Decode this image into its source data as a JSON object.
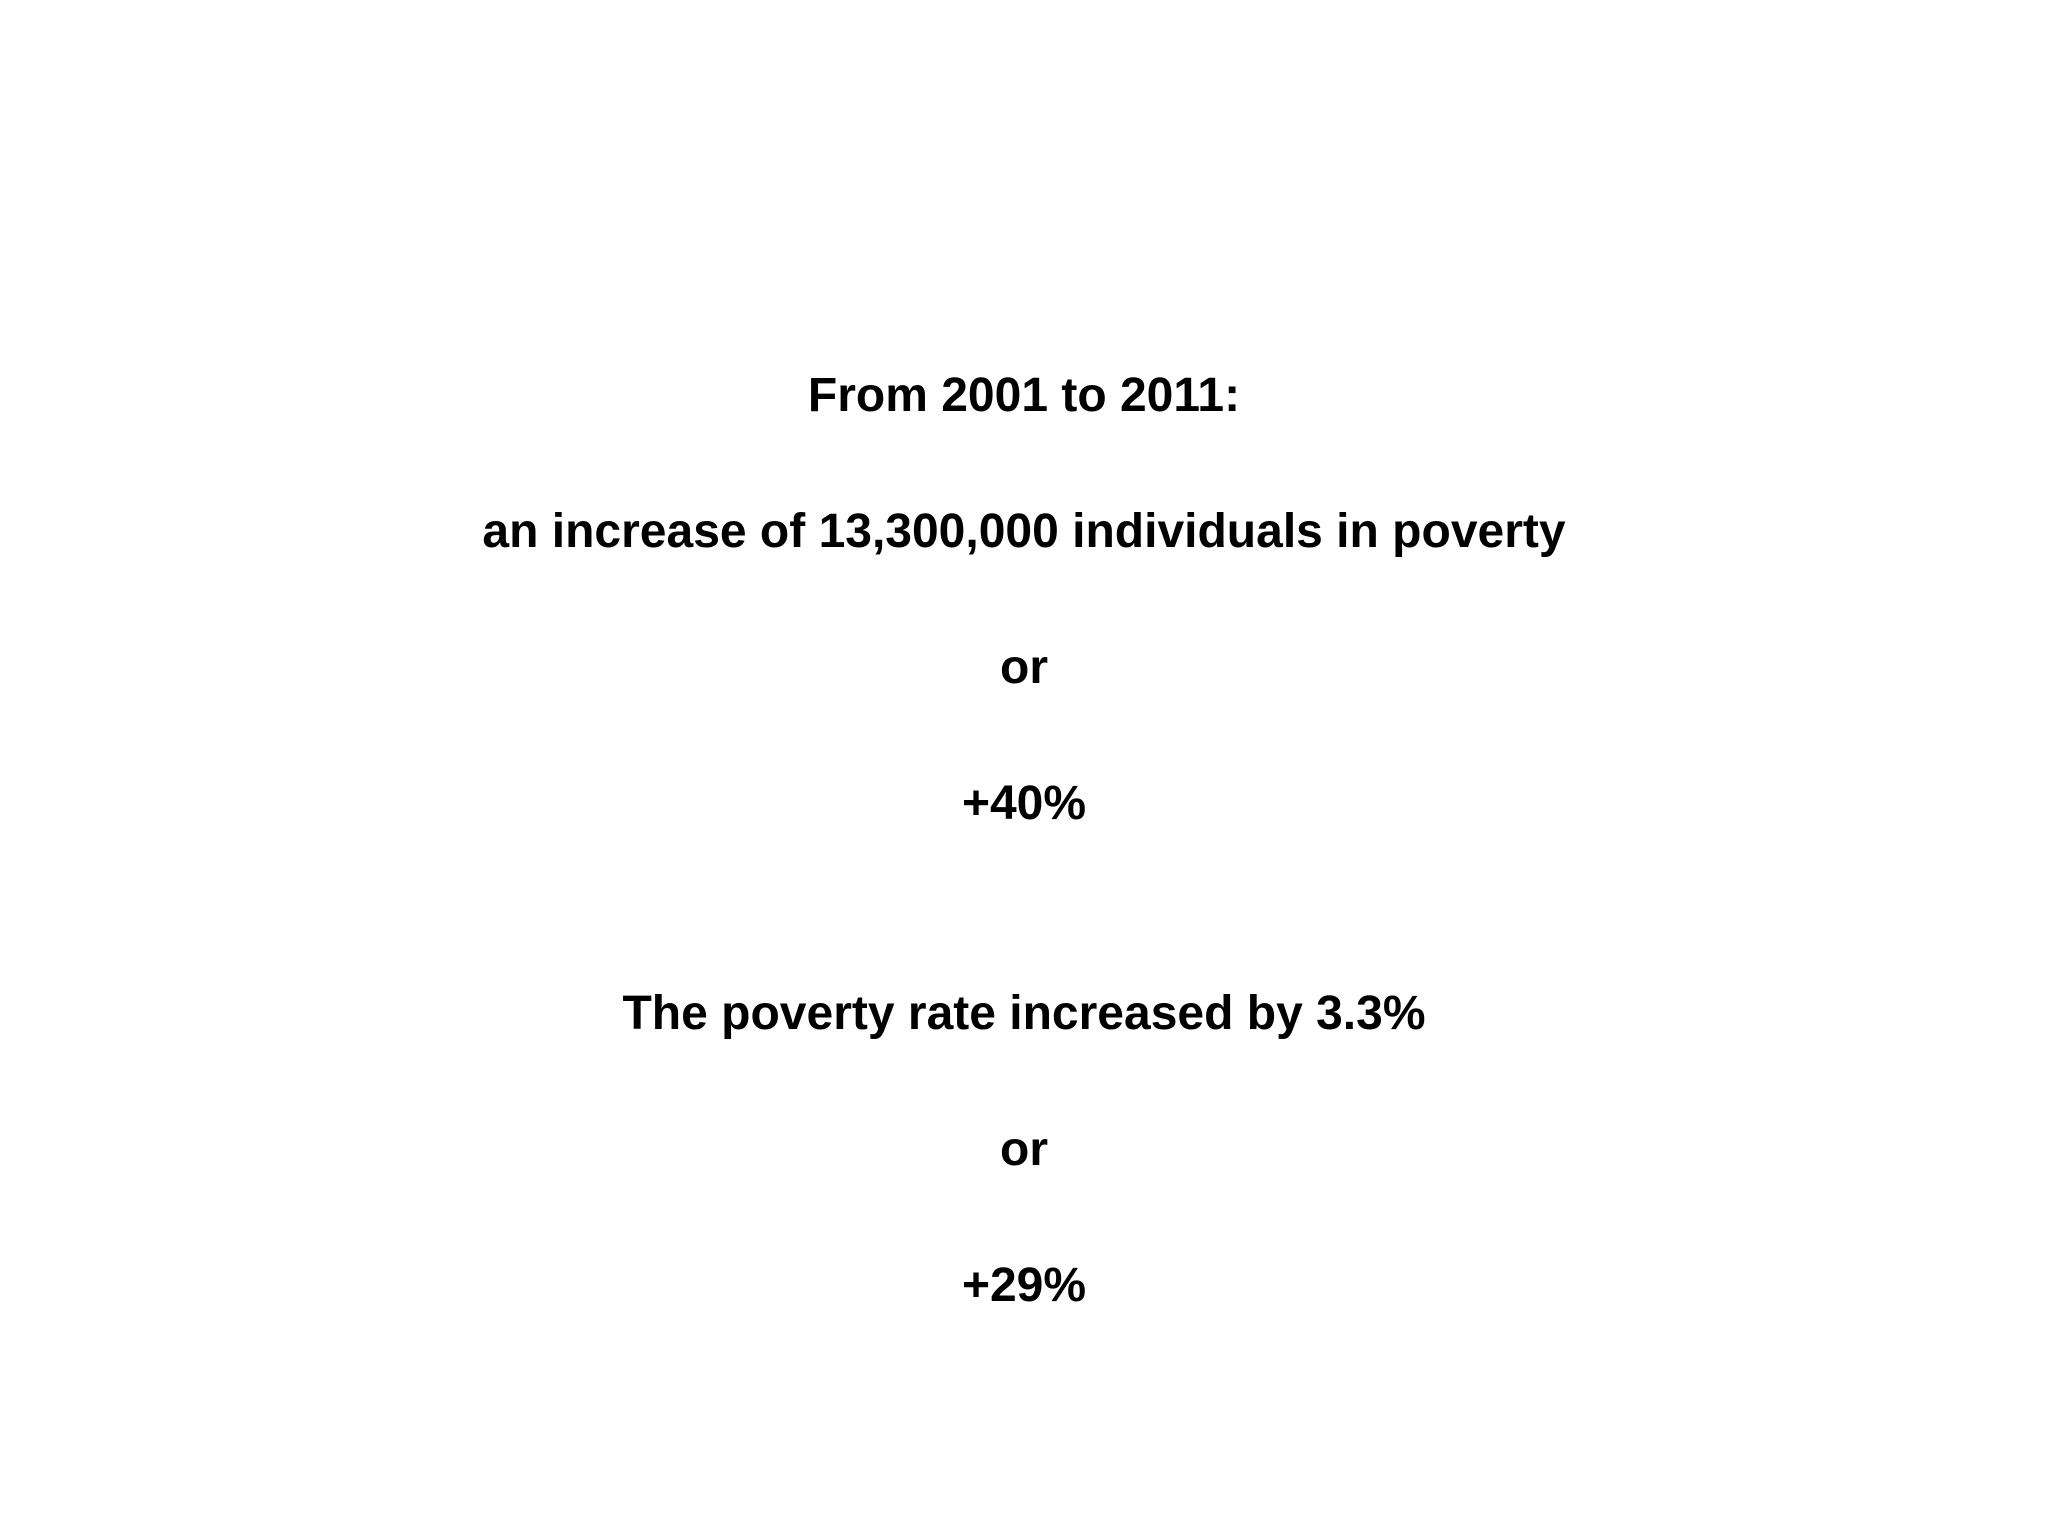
{
  "slide": {
    "lines": [
      "From 2001 to 2011:",
      "an increase of 13,300,000 individuals in poverty",
      "or",
      "+40%",
      "The poverty rate increased by 3.3%",
      "or",
      "+29%"
    ]
  }
}
